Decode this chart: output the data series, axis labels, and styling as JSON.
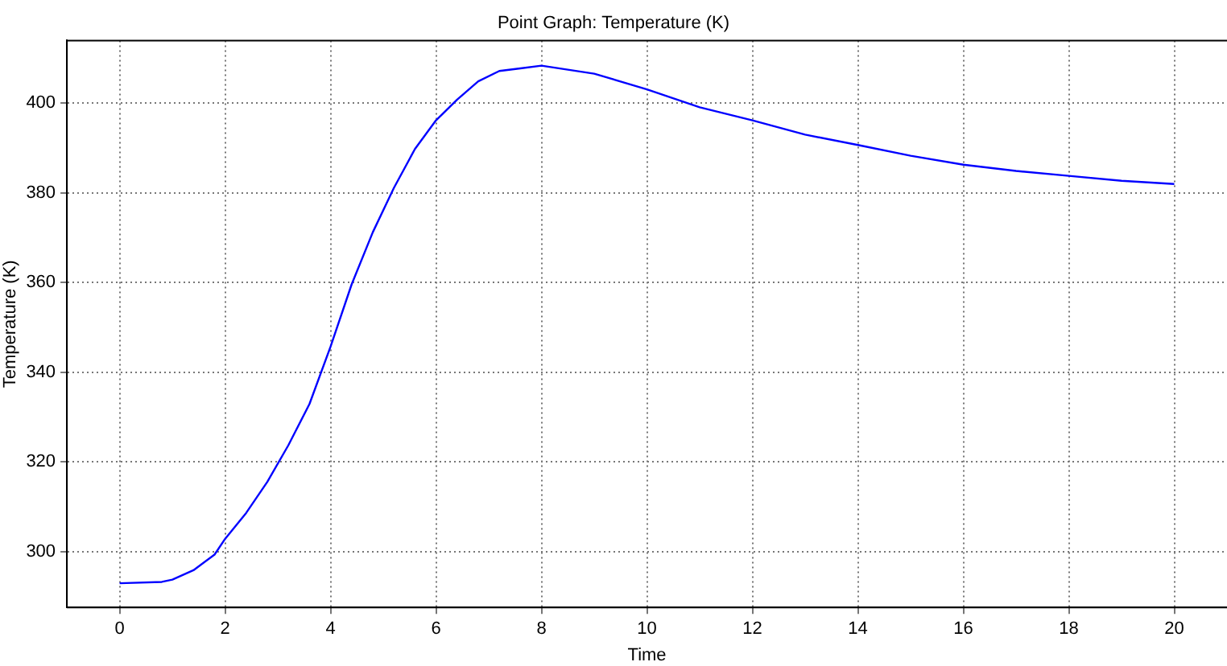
{
  "chart_data": {
    "type": "line",
    "title": "Point Graph: Temperature (K)",
    "xlabel": "Time",
    "ylabel": "Temperature (K)",
    "x": [
      0,
      0.8,
      1,
      1.4,
      1.8,
      2,
      2.4,
      2.8,
      3.2,
      3.6,
      4,
      4.4,
      4.8,
      5.2,
      5.6,
      6,
      6.4,
      6.8,
      7.2,
      7.6,
      8,
      9,
      10,
      11,
      12,
      13,
      14,
      15,
      16,
      17,
      18,
      19,
      20
    ],
    "series": [
      {
        "color": "#0000ff",
        "values": [
          292.9,
          293.2,
          293.7,
          295.8,
          299.3,
          302.8,
          308.6,
          315.5,
          323.7,
          332.9,
          345.7,
          359.6,
          371.2,
          381.1,
          389.8,
          396.2,
          400.8,
          404.9,
          407.2,
          407.8,
          408.4,
          406.6,
          403.1,
          399.1,
          396.2,
          393.0,
          390.7,
          388.3,
          386.3,
          384.9,
          383.8,
          382.7,
          382.0
        ]
      }
    ],
    "xlim": [
      -1,
      21
    ],
    "xticks": [
      0,
      2,
      4,
      6,
      8,
      10,
      12,
      14,
      16,
      18,
      20
    ],
    "ylim": [
      287.5,
      414
    ],
    "yticks": [
      300,
      320,
      340,
      360,
      380,
      400
    ],
    "grid": true,
    "legend": false,
    "marker": "none",
    "line_style": "solid"
  }
}
